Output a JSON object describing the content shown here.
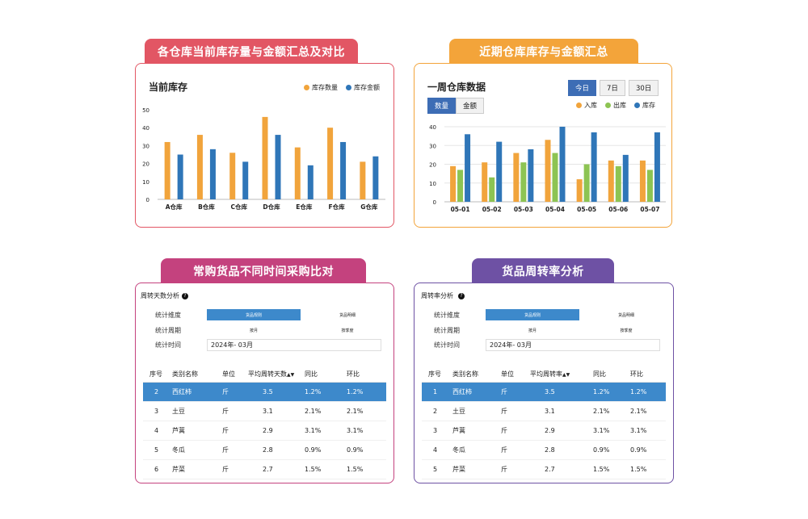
{
  "colors": {
    "red": "#e25664",
    "orange": "#f3a43a",
    "magenta": "#c4427e",
    "purple": "#6e51a4",
    "bar_orange": "#f1a43c",
    "bar_blue": "#2f76b8",
    "bar_green": "#8dc453"
  },
  "panel1": {
    "tab": "各仓库当前库存量与金额汇总及对比",
    "title": "当前库存",
    "legend": [
      "库存数量",
      "库存金额"
    ],
    "yticks": [
      "50",
      "40",
      "30",
      "20",
      "10",
      "0"
    ]
  },
  "panel2": {
    "tab": "近期仓库库存与金额汇总",
    "title": "一周仓库数据",
    "days": [
      "今日",
      "7日",
      "30日"
    ],
    "seg": [
      "数量",
      "金额"
    ],
    "legend": [
      "入库",
      "出库",
      "库存"
    ],
    "yticks": [
      "40",
      "30",
      "20",
      "10",
      "0"
    ]
  },
  "panel3": {
    "tab": "常购货品不同时间采购比对",
    "subtitle": "周转天数分析",
    "help": "?",
    "dim_label": "统计维度",
    "dim_opts": [
      "货品规则",
      "货品明细"
    ],
    "period_label": "统计周期",
    "period_opts": [
      "按月",
      "按季度"
    ],
    "time_label": "统计时间",
    "time_value": "2024年- 03月",
    "headers": [
      "序号",
      "类别名称",
      "单位",
      "平均周转天数",
      "同比",
      "环比"
    ],
    "rows": [
      {
        "no": "2",
        "name": "西红柿",
        "unit": "斤",
        "avg": "3.5",
        "yoy": "1.2%",
        "mom": "1.2%"
      },
      {
        "no": "3",
        "name": "土豆",
        "unit": "斤",
        "avg": "3.1",
        "yoy": "2.1%",
        "mom": "2.1%"
      },
      {
        "no": "4",
        "name": "芦蒿",
        "unit": "斤",
        "avg": "2.9",
        "yoy": "3.1%",
        "mom": "3.1%"
      },
      {
        "no": "5",
        "name": "冬瓜",
        "unit": "斤",
        "avg": "2.8",
        "yoy": "0.9%",
        "mom": "0.9%"
      },
      {
        "no": "6",
        "name": "芹菜",
        "unit": "斤",
        "avg": "2.7",
        "yoy": "1.5%",
        "mom": "1.5%"
      }
    ]
  },
  "panel4": {
    "tab": "货品周转率分析",
    "subtitle": "周转率分析",
    "help": "?",
    "dim_label": "统计维度",
    "dim_opts": [
      "货品规则",
      "货品明细"
    ],
    "period_label": "统计周期",
    "period_opts": [
      "按月",
      "按季度"
    ],
    "time_label": "统计时间",
    "time_value": "2024年- 03月",
    "headers": [
      "序号",
      "类别名称",
      "单位",
      "平均周转率",
      "同比",
      "环比"
    ],
    "rows": [
      {
        "no": "1",
        "name": "西红柿",
        "unit": "斤",
        "avg": "3.5",
        "yoy": "1.2%",
        "mom": "1.2%"
      },
      {
        "no": "2",
        "name": "土豆",
        "unit": "斤",
        "avg": "3.1",
        "yoy": "2.1%",
        "mom": "2.1%"
      },
      {
        "no": "3",
        "name": "芦蒿",
        "unit": "斤",
        "avg": "2.9",
        "yoy": "3.1%",
        "mom": "3.1%"
      },
      {
        "no": "4",
        "name": "冬瓜",
        "unit": "斤",
        "avg": "2.8",
        "yoy": "0.9%",
        "mom": "0.9%"
      },
      {
        "no": "5",
        "name": "芹菜",
        "unit": "斤",
        "avg": "2.7",
        "yoy": "1.5%",
        "mom": "1.5%"
      }
    ]
  },
  "chart_data": [
    {
      "type": "bar",
      "title": "当前库存",
      "categories": [
        "A仓库",
        "B仓库",
        "C仓库",
        "D仓库",
        "E仓库",
        "F仓库",
        "G仓库"
      ],
      "series": [
        {
          "name": "库存数量",
          "values": [
            32,
            36,
            26,
            46,
            29,
            40,
            21
          ]
        },
        {
          "name": "库存金额",
          "values": [
            25,
            28,
            21,
            36,
            19,
            32,
            24
          ]
        }
      ],
      "ylim": [
        0,
        50
      ],
      "grid": false,
      "legend": "top-right"
    },
    {
      "type": "bar",
      "title": "一周仓库数据",
      "categories": [
        "05-01",
        "05-02",
        "05-03",
        "05-04",
        "05-05",
        "05-06",
        "05-07"
      ],
      "series": [
        {
          "name": "入库",
          "values": [
            19,
            21,
            26,
            33,
            12,
            22,
            22
          ]
        },
        {
          "name": "出库",
          "values": [
            17,
            13,
            21,
            26,
            20,
            19,
            17
          ]
        },
        {
          "name": "库存",
          "values": [
            36,
            32,
            28,
            40,
            37,
            25,
            37
          ]
        }
      ],
      "ylim": [
        0,
        40
      ],
      "grid": true,
      "legend": "top-right"
    }
  ]
}
